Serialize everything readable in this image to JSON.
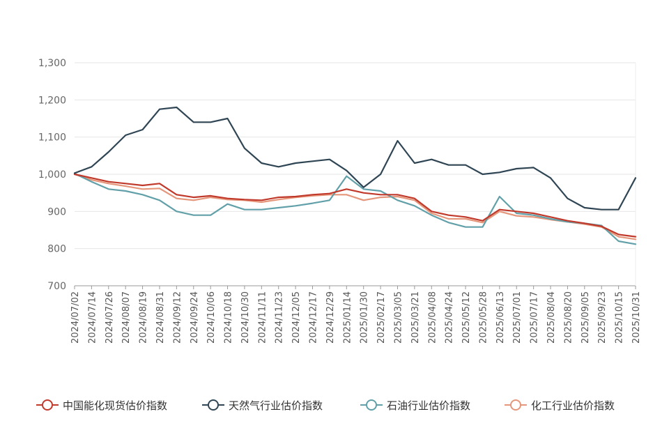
{
  "chart_data": {
    "type": "line",
    "title": "",
    "xlabel": "",
    "ylabel": "",
    "ylim": [
      700,
      1300
    ],
    "yticks": [
      700,
      800,
      900,
      1000,
      1100,
      1200,
      1300
    ],
    "ytick_labels": [
      "700",
      "800",
      "900",
      "1,000",
      "1,100",
      "1,200",
      "1,300"
    ],
    "grid": "horizontal",
    "legend_position": "bottom",
    "x_tick_labels": [
      "2024/07/02",
      "2024/07/14",
      "2024/07/26",
      "2024/08/07",
      "2024/08/19",
      "2024/08/31",
      "2024/09/12",
      "2024/09/24",
      "2024/10/06",
      "2024/10/18",
      "2024/10/30",
      "2024/11/11",
      "2024/11/23",
      "2024/12/05",
      "2024/12/17",
      "2024/12/29",
      "2025/01/14",
      "2025/01/30",
      "2025/02/17",
      "2025/03/05",
      "2025/03/21",
      "2025/04/08",
      "2025/04/24",
      "2025/05/12",
      "2025/05/28",
      "2025/06/13",
      "2025/07/01",
      "2025/07/17",
      "2025/08/04",
      "2025/08/20",
      "2025/09/05",
      "2025/09/23",
      "2025/10/15",
      "2025/10/31"
    ],
    "x": [
      "2024/07/02",
      "2024/07/14",
      "2024/07/26",
      "2024/08/07",
      "2024/08/19",
      "2024/08/31",
      "2024/09/12",
      "2024/09/24",
      "2024/10/06",
      "2024/10/18",
      "2024/10/30",
      "2024/11/11",
      "2024/11/23",
      "2024/12/05",
      "2024/12/17",
      "2024/12/29",
      "2025/01/14",
      "2025/01/30",
      "2025/02/17",
      "2025/03/05",
      "2025/03/21",
      "2025/04/08",
      "2025/04/24",
      "2025/05/12",
      "2025/05/28",
      "2025/06/13",
      "2025/07/01",
      "2025/07/17",
      "2025/08/04",
      "2025/08/20",
      "2025/09/05",
      "2025/09/23",
      "2025/10/15",
      "2025/10/31"
    ],
    "series": [
      {
        "name": "中国能化现货估价指数",
        "color": "#c0392b",
        "values": [
          1000,
          990,
          980,
          975,
          970,
          975,
          945,
          938,
          942,
          935,
          932,
          930,
          938,
          940,
          945,
          948,
          960,
          950,
          945,
          945,
          935,
          900,
          890,
          885,
          875,
          905,
          900,
          895,
          885,
          875,
          868,
          860,
          838,
          832
        ]
      },
      {
        "name": "天然气行业估价指数",
        "color": "#2f4554",
        "values": [
          1003,
          1020,
          1060,
          1105,
          1120,
          1175,
          1180,
          1140,
          1140,
          1150,
          1070,
          1030,
          1020,
          1030,
          1035,
          1040,
          1010,
          965,
          1000,
          1090,
          1030,
          1040,
          1025,
          1025,
          1000,
          1005,
          1015,
          1018,
          990,
          935,
          910,
          905,
          905,
          990
        ]
      },
      {
        "name": "石油行业估价指数",
        "color": "#61a0a8",
        "values": [
          1002,
          980,
          960,
          955,
          945,
          930,
          900,
          890,
          890,
          920,
          905,
          905,
          910,
          915,
          922,
          930,
          995,
          960,
          955,
          930,
          915,
          890,
          870,
          858,
          858,
          940,
          895,
          890,
          880,
          872,
          868,
          862,
          820,
          812
        ]
      },
      {
        "name": "化工行业估价指数",
        "color": "#e5967a",
        "values": [
          1000,
          985,
          975,
          968,
          960,
          962,
          935,
          930,
          938,
          932,
          930,
          925,
          932,
          938,
          942,
          945,
          945,
          930,
          938,
          940,
          930,
          895,
          880,
          880,
          870,
          900,
          888,
          885,
          878,
          872,
          866,
          858,
          832,
          825
        ]
      }
    ]
  }
}
